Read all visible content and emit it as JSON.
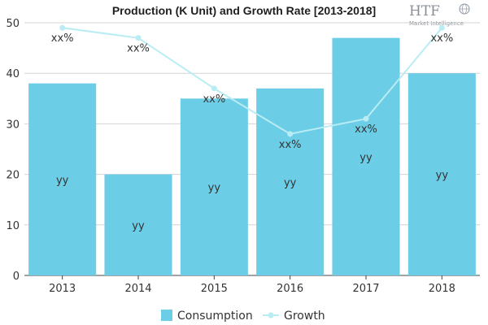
{
  "chart_data": {
    "type": "bar",
    "title": "Production (K Unit) and Growth Rate [2013-2018]",
    "categories": [
      "2013",
      "2014",
      "2015",
      "2016",
      "2017",
      "2018"
    ],
    "series": [
      {
        "name": "Consumption",
        "type": "bar",
        "values": [
          38,
          20,
          35,
          37,
          47,
          40
        ],
        "labels": [
          "yy",
          "yy",
          "yy",
          "yy",
          "yy",
          "yy"
        ],
        "color": "#6ccde6"
      },
      {
        "name": "Growth",
        "type": "line",
        "values": [
          49,
          47,
          37,
          28,
          31,
          49
        ],
        "labels": [
          "xx%",
          "xx%",
          "xx%",
          "xx%",
          "xx%",
          "xx%"
        ],
        "color": "#b9ecf3"
      }
    ],
    "yticks": [
      0,
      10,
      20,
      30,
      40,
      50
    ],
    "ylim": [
      0,
      50
    ],
    "xlabel": "",
    "ylabel": "",
    "grid": true,
    "legend_position": "bottom"
  },
  "logo": {
    "text": "HTF",
    "subtitle": "Market Intelligence",
    "color": "#8a8f96"
  }
}
